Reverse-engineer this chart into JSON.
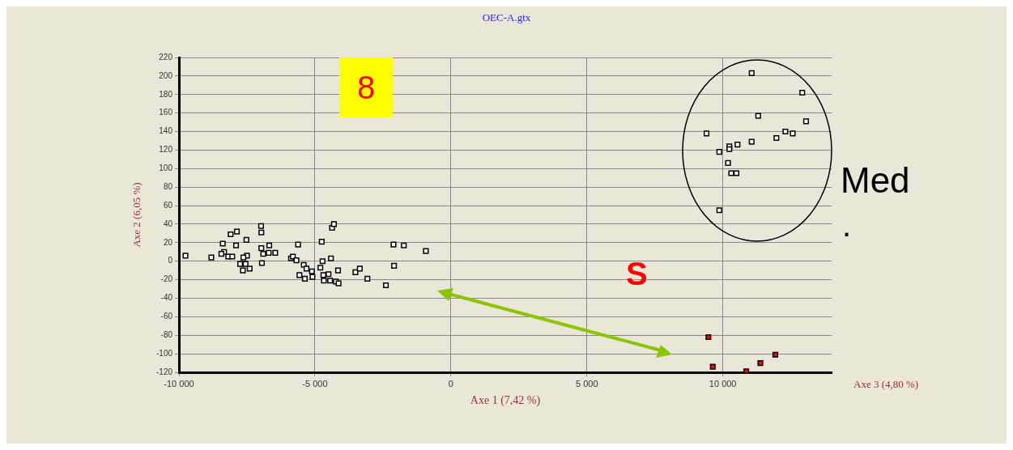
{
  "chart_data": {
    "type": "scatter",
    "title": "OEC-A.gtx",
    "xlabel": "Axe 1 (7,42 %)",
    "ylabel": "Axe 2 (6,05 %)",
    "annotations": [
      "8",
      "S",
      "Med",
      ".",
      "Axe 3 (4,80 %)"
    ],
    "xlim": [
      -10000,
      14000
    ],
    "ylim": [
      -120,
      220
    ],
    "xticks": [
      {
        "value": -10000,
        "label": "-10 000"
      },
      {
        "value": -5000,
        "label": "-5 000"
      },
      0,
      {
        "value": 5000,
        "label": "5 000"
      },
      {
        "value": 10000,
        "label": "10 000"
      }
    ],
    "yticks": [
      -120,
      -100,
      -80,
      -60,
      -40,
      -20,
      0,
      20,
      40,
      60,
      80,
      100,
      120,
      140,
      160,
      180,
      200,
      220
    ],
    "grid": true,
    "marker": "square",
    "legend": false,
    "series": [
      {
        "color": "#ffffff",
        "x": [
          -9760,
          -8810,
          -8390,
          -8340,
          -8440,
          -8190,
          -8100,
          -8040,
          -7870,
          -7900,
          -7520,
          -7500,
          -7630,
          -7750,
          -7550,
          -7650,
          -7400,
          -6980,
          -6970,
          -6950,
          -6970,
          -6900,
          -6680,
          -6700,
          -6460,
          -5880,
          -5810,
          -5680,
          -5620,
          -5570,
          -5410,
          -5370,
          -5310,
          -5110,
          -5090,
          -4800,
          -4750,
          -4720,
          -4690,
          -4670,
          -4500,
          -4440,
          -4410,
          -4370,
          -4300,
          -4230,
          -4130,
          -4150,
          -3510,
          -3350,
          -3070,
          -2390,
          -2110,
          -2090,
          -1730,
          -920,
          11060,
          12920,
          11300,
          13060,
          9400,
          12300,
          12570,
          11970,
          11060,
          10540,
          10240,
          10240,
          9870,
          10190,
          10310,
          10500,
          9870
        ],
        "values": [
          6,
          4,
          19,
          10,
          8,
          5,
          29,
          5,
          32,
          17,
          23,
          6,
          4,
          -3,
          -3,
          -10,
          -8,
          38,
          31,
          -2,
          14,
          8,
          17,
          9,
          9,
          3,
          5,
          1,
          18,
          -15,
          -4,
          -19,
          -8,
          -11,
          -17,
          -7,
          21,
          0,
          -15,
          -21,
          -14,
          -21,
          3,
          36,
          40,
          -22,
          -24,
          -10,
          -12,
          -8,
          -19,
          -26,
          18,
          -5,
          17,
          11,
          203,
          182,
          157,
          151,
          138,
          140,
          138,
          133,
          129,
          126,
          124,
          121,
          118,
          106,
          95,
          95,
          55
        ]
      },
      {
        "color": "#ff0000",
        "x": [
          9470,
          11930,
          11380,
          9630,
          10860
        ],
        "values": [
          -82,
          -101,
          -110,
          -114,
          -119
        ]
      }
    ]
  }
}
